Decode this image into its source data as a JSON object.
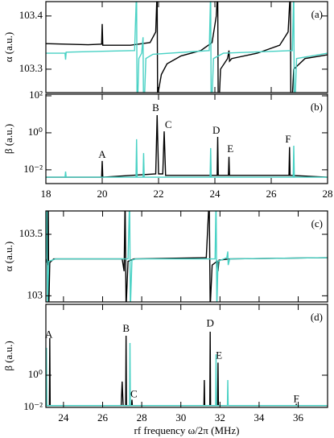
{
  "chart_data": [
    {
      "type": "line",
      "panel_label": "(a)",
      "ylabel": "α (a.u.)",
      "xlim": [
        18,
        28
      ],
      "xticks": [
        18,
        20,
        22,
        24,
        26,
        28
      ],
      "show_xtick_labels": false,
      "ylim": [
        103.256,
        103.427
      ],
      "yticks": [
        103.3,
        103.4
      ],
      "series": [
        {
          "color": "#000000",
          "x": [
            18,
            19.5,
            19.98,
            20,
            20.02,
            21,
            21.7,
            21.9,
            21.95,
            21.97,
            22,
            22.1,
            22.3,
            22.8,
            23.5,
            23.9,
            24.05,
            24.1,
            24.12,
            24.2,
            24.45,
            24.5,
            24.52,
            24.6,
            25.5,
            26.3,
            26.6,
            26.68,
            26.7,
            26.8,
            27.2,
            28
          ],
          "values": [
            103.348,
            103.346,
            103.347,
            103.385,
            103.345,
            103.345,
            103.35,
            103.37,
            103.45,
            103.2,
            103.26,
            103.29,
            103.31,
            103.325,
            103.335,
            103.35,
            103.4,
            103.45,
            103.2,
            103.3,
            103.32,
            103.335,
            103.315,
            103.32,
            103.33,
            103.345,
            103.37,
            103.45,
            103.2,
            103.3,
            103.32,
            103.327
          ]
        },
        {
          "color": "#48d1c4",
          "x": [
            18,
            18.68,
            18.7,
            18.72,
            21.15,
            21.22,
            21.24,
            21.3,
            21.4,
            21.45,
            21.47,
            21.55,
            21.8,
            23.8,
            23.85,
            23.87,
            23.95,
            24.3,
            26.75,
            26.8,
            26.82,
            26.9,
            28
          ],
          "values": [
            103.33,
            103.33,
            103.318,
            103.332,
            103.335,
            103.45,
            103.2,
            103.32,
            103.33,
            103.36,
            103.2,
            103.32,
            103.328,
            103.335,
            103.45,
            103.2,
            103.32,
            103.33,
            103.335,
            103.45,
            103.2,
            103.32,
            103.33
          ]
        }
      ]
    },
    {
      "type": "line",
      "panel_label": "(b)",
      "ylabel": "β (a.u.)",
      "yscale": "log",
      "xlim": [
        18,
        28
      ],
      "xticks": [
        18,
        20,
        22,
        24,
        26,
        28
      ],
      "show_xtick_labels": true,
      "ylim": [
        0.0018,
        122
      ],
      "yticks": [
        {
          "value": 0.01,
          "label": "10⁻²"
        },
        {
          "value": 1,
          "label": "10⁰"
        },
        {
          "value": 100,
          "label": "10²"
        }
      ],
      "series": [
        {
          "color": "#000000",
          "x": [
            18,
            19.98,
            20,
            20.02,
            21.9,
            21.95,
            22,
            22.15,
            22.2,
            22.25,
            24.08,
            24.1,
            24.12,
            24.48,
            24.5,
            24.52,
            26.63,
            26.65,
            26.67,
            28
          ],
          "values": [
            0.004,
            0.004,
            0.03,
            0.004,
            0.006,
            9,
            0.006,
            0.006,
            1.2,
            0.005,
            0.005,
            0.6,
            0.005,
            0.005,
            0.05,
            0.005,
            0.005,
            0.17,
            0.005,
            0.004
          ]
        },
        {
          "color": "#48d1c4",
          "x": [
            18,
            18.68,
            18.7,
            18.72,
            21.2,
            21.22,
            21.24,
            21.45,
            21.47,
            21.49,
            23.83,
            23.85,
            23.87,
            26.78,
            26.8,
            26.82,
            28
          ],
          "values": [
            0.004,
            0.004,
            0.008,
            0.004,
            0.004,
            0.45,
            0.004,
            0.004,
            0.08,
            0.004,
            0.004,
            0.15,
            0.004,
            0.004,
            0.2,
            0.004,
            0.004
          ]
        }
      ],
      "annotations": [
        {
          "text": "A",
          "x": 20,
          "y": 0.06,
          "color": "#1a1aff"
        },
        {
          "text": "B",
          "x": 21.9,
          "y": 20,
          "color": "#1a1aff"
        },
        {
          "text": "C",
          "x": 22.35,
          "y": 2.5,
          "color": "#e02020"
        },
        {
          "text": "D",
          "x": 24.05,
          "y": 1.2,
          "color": "#e02020"
        },
        {
          "text": "E",
          "x": 24.55,
          "y": 0.12,
          "color": "#1a1aff"
        },
        {
          "text": "F",
          "x": 26.6,
          "y": 0.4,
          "color": "#e02020"
        }
      ]
    },
    {
      "type": "line",
      "panel_label": "(c)",
      "ylabel": "α (a.u.)",
      "xlim": [
        23.1,
        37.5
      ],
      "xticks": [
        24,
        26,
        28,
        30,
        32,
        34,
        36
      ],
      "show_xtick_labels": false,
      "ylim": [
        102.95,
        103.69
      ],
      "yticks": [
        103,
        103.5
      ],
      "series": [
        {
          "color": "#000000",
          "x": [
            23.1,
            23.2,
            23.22,
            23.25,
            23.3,
            23.5,
            27,
            27.1,
            27.15,
            27.2,
            27.3,
            27.6,
            31.3,
            31.45,
            31.5,
            31.6,
            31.85,
            31.9,
            31.95,
            32.5,
            37.5
          ],
          "values": [
            103.3,
            103.25,
            103.8,
            102.9,
            103.27,
            103.3,
            103.3,
            103.2,
            103.8,
            102.9,
            103.28,
            103.3,
            103.31,
            103.8,
            102.9,
            103.25,
            103.28,
            103.2,
            103.29,
            103.3,
            103.31
          ]
        },
        {
          "color": "#48d1c4",
          "x": [
            23.1,
            23.15,
            23.18,
            23.25,
            23.6,
            27.3,
            27.38,
            27.42,
            27.5,
            27.7,
            31.75,
            31.8,
            31.84,
            31.9,
            32.35,
            32.4,
            32.42,
            32.5,
            37.5
          ],
          "values": [
            103.3,
            103.8,
            102.9,
            103.28,
            103.3,
            103.3,
            103.8,
            102.9,
            103.29,
            103.3,
            103.3,
            103.8,
            102.9,
            103.28,
            103.31,
            103.36,
            103.25,
            103.3,
            103.31
          ]
        }
      ]
    },
    {
      "type": "line",
      "panel_label": "(d)",
      "ylabel": "β (a.u.)",
      "yscale": "log",
      "xlabel": "rf frequency ω/2π (MHz)",
      "xlim": [
        23.1,
        37.5
      ],
      "xticks": [
        24,
        26,
        28,
        30,
        32,
        34,
        36
      ],
      "show_xtick_labels": true,
      "ylim": [
        0.01,
        25000
      ],
      "yticks": [
        {
          "value": 0.01,
          "label": "10⁻²"
        },
        {
          "value": 1,
          "label": "10⁰"
        }
      ],
      "series": [
        {
          "color": "#000000",
          "x": [
            23.1,
            23.28,
            23.3,
            23.32,
            26.95,
            27,
            27.05,
            27.18,
            27.2,
            27.22,
            27.48,
            27.5,
            27.52,
            31.18,
            31.2,
            31.22,
            31.48,
            31.5,
            31.52,
            31.88,
            31.9,
            31.92,
            35.88,
            35.9,
            35.92,
            37.5
          ],
          "values": [
            0.013,
            0.013,
            200,
            0.013,
            0.013,
            0.4,
            0.013,
            0.013,
            280,
            0.013,
            0.013,
            0.03,
            0.013,
            0.013,
            0.5,
            0.013,
            0.013,
            500,
            0.013,
            0.013,
            6,
            0.013,
            0.013,
            0.015,
            0.013,
            0.013
          ]
        },
        {
          "color": "#48d1c4",
          "x": [
            23.1,
            23.11,
            23.13,
            23.15,
            27.38,
            27.4,
            27.42,
            31.78,
            31.8,
            31.82,
            32.38,
            32.4,
            32.42,
            37.5
          ],
          "values": [
            0.013,
            0.013,
            50,
            0.013,
            0.013,
            100,
            0.013,
            0.013,
            20,
            0.013,
            0.013,
            0.5,
            0.013,
            0.013
          ]
        }
      ],
      "annotations": [
        {
          "text": "A",
          "x": 23.25,
          "y": 300,
          "color": "#1a1aff"
        },
        {
          "text": "B",
          "x": 27.2,
          "y": 700,
          "color": "#1a1aff"
        },
        {
          "text": "C",
          "x": 27.6,
          "y": 0.06,
          "color": "#e02020"
        },
        {
          "text": "D",
          "x": 31.5,
          "y": 1500,
          "color": "#e02020"
        },
        {
          "text": "E",
          "x": 31.95,
          "y": 15,
          "color": "#1a1aff"
        },
        {
          "text": "F",
          "x": 35.9,
          "y": 0.03,
          "color": "#e02020"
        }
      ]
    }
  ]
}
